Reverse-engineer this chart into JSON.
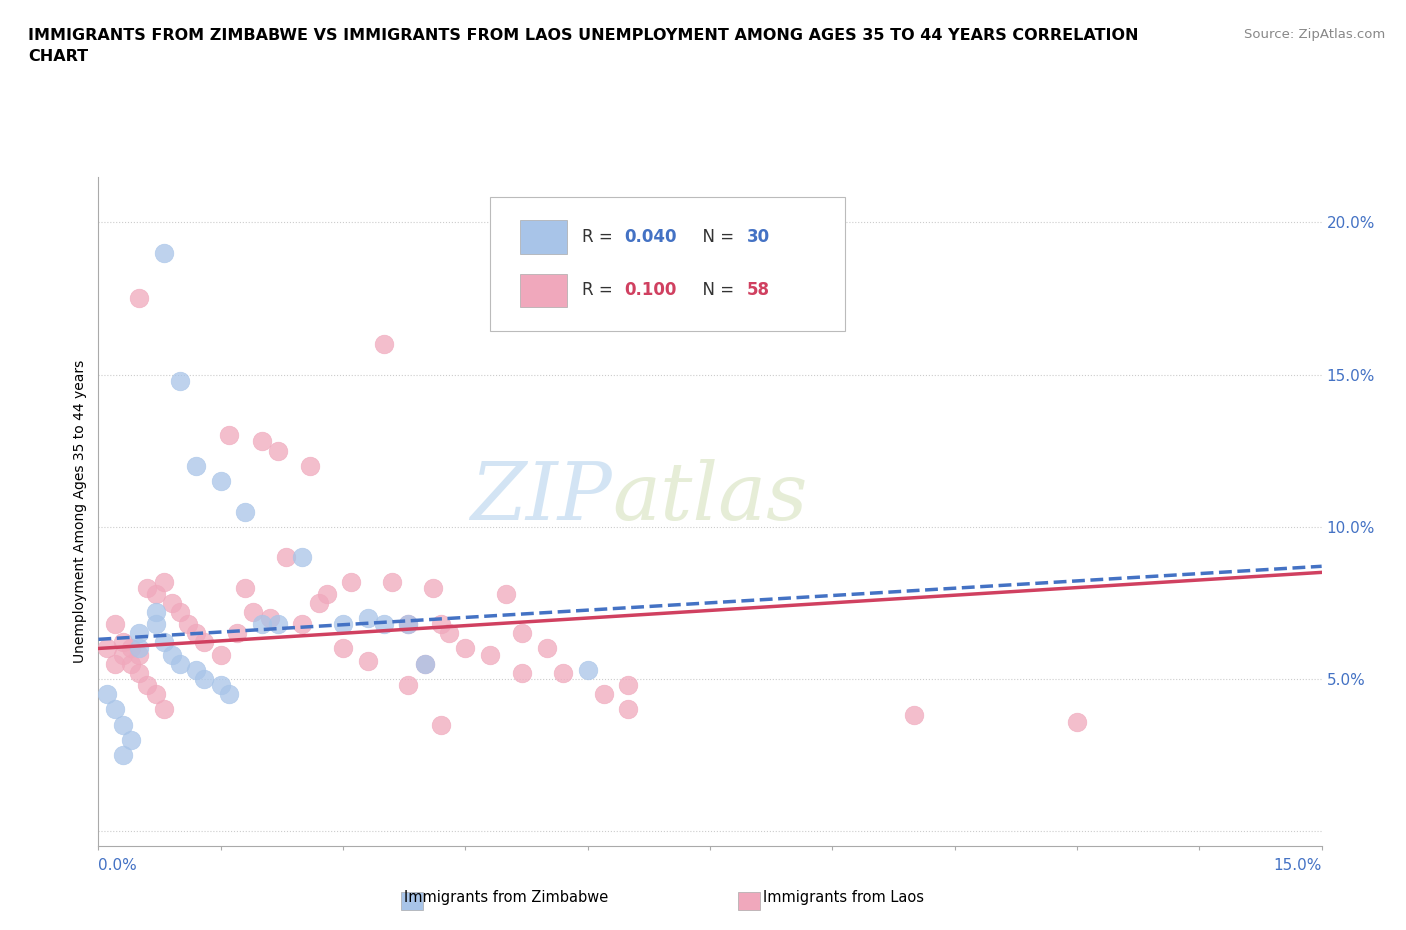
{
  "title": "IMMIGRANTS FROM ZIMBABWE VS IMMIGRANTS FROM LAOS UNEMPLOYMENT AMONG AGES 35 TO 44 YEARS CORRELATION\nCHART",
  "source": "Source: ZipAtlas.com",
  "ylabel": "Unemployment Among Ages 35 to 44 years",
  "xlim": [
    0.0,
    0.15
  ],
  "ylim": [
    -0.005,
    0.215
  ],
  "yticks": [
    0.0,
    0.05,
    0.1,
    0.15,
    0.2
  ],
  "ytick_labels": [
    "",
    "5.0%",
    "10.0%",
    "15.0%",
    "20.0%"
  ],
  "grid_color": "#cccccc",
  "background_color": "#ffffff",
  "watermark_zip": "ZIP",
  "watermark_atlas": "atlas",
  "zimbabwe_color": "#A8C4E8",
  "laos_color": "#F0A8BC",
  "zimbabwe_line_color": "#4472C4",
  "laos_line_color": "#D04060",
  "zimbabwe_R": 0.04,
  "zimbabwe_N": 30,
  "laos_R": 0.1,
  "laos_N": 58,
  "zimbabwe_x": [
    0.008,
    0.01,
    0.012,
    0.015,
    0.018,
    0.02,
    0.022,
    0.025,
    0.03,
    0.033,
    0.035,
    0.038,
    0.04,
    0.005,
    0.005,
    0.007,
    0.007,
    0.008,
    0.009,
    0.01,
    0.012,
    0.013,
    0.015,
    0.016,
    0.003,
    0.004,
    0.001,
    0.002,
    0.06,
    0.003
  ],
  "zimbabwe_y": [
    0.19,
    0.148,
    0.12,
    0.115,
    0.105,
    0.068,
    0.068,
    0.09,
    0.068,
    0.07,
    0.068,
    0.068,
    0.055,
    0.065,
    0.06,
    0.072,
    0.068,
    0.062,
    0.058,
    0.055,
    0.053,
    0.05,
    0.048,
    0.045,
    0.035,
    0.03,
    0.045,
    0.04,
    0.053,
    0.025
  ],
  "laos_x": [
    0.005,
    0.006,
    0.007,
    0.008,
    0.009,
    0.01,
    0.011,
    0.012,
    0.013,
    0.015,
    0.016,
    0.017,
    0.018,
    0.019,
    0.02,
    0.021,
    0.022,
    0.023,
    0.025,
    0.026,
    0.027,
    0.028,
    0.03,
    0.031,
    0.033,
    0.035,
    0.036,
    0.038,
    0.04,
    0.041,
    0.043,
    0.045,
    0.048,
    0.05,
    0.052,
    0.038,
    0.042,
    0.052,
    0.062,
    0.065,
    0.055,
    0.057,
    0.002,
    0.003,
    0.003,
    0.004,
    0.004,
    0.005,
    0.005,
    0.006,
    0.007,
    0.008,
    0.001,
    0.002,
    0.065,
    0.1,
    0.042,
    0.12
  ],
  "laos_y": [
    0.175,
    0.08,
    0.078,
    0.082,
    0.075,
    0.072,
    0.068,
    0.065,
    0.062,
    0.058,
    0.13,
    0.065,
    0.08,
    0.072,
    0.128,
    0.07,
    0.125,
    0.09,
    0.068,
    0.12,
    0.075,
    0.078,
    0.06,
    0.082,
    0.056,
    0.16,
    0.082,
    0.068,
    0.055,
    0.08,
    0.065,
    0.06,
    0.058,
    0.078,
    0.052,
    0.048,
    0.068,
    0.065,
    0.045,
    0.048,
    0.06,
    0.052,
    0.068,
    0.062,
    0.058,
    0.06,
    0.055,
    0.058,
    0.052,
    0.048,
    0.045,
    0.04,
    0.06,
    0.055,
    0.04,
    0.038,
    0.035,
    0.036
  ]
}
